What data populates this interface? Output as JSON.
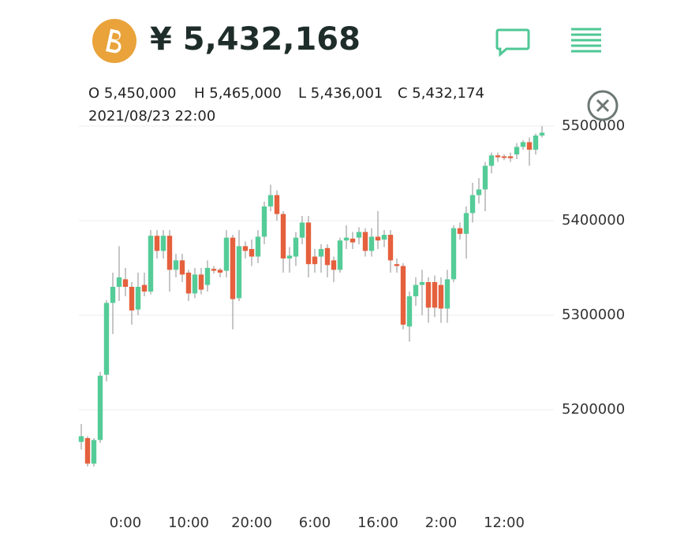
{
  "header": {
    "price": "¥ 5,432,168"
  },
  "ohlc": {
    "open": "O 5,450,000",
    "high": "H 5,465,000",
    "low": "L 5,436,001",
    "close": "C 5,432,174",
    "time": "2021/08/23 22:00"
  },
  "chart_data": {
    "type": "candlestick",
    "categories": [
      null,
      null,
      null,
      null,
      null,
      null,
      null,
      "0:00",
      null,
      null,
      null,
      null,
      null,
      null,
      null,
      null,
      null,
      "10:00",
      null,
      null,
      null,
      null,
      null,
      null,
      null,
      null,
      null,
      "20:00",
      null,
      null,
      null,
      null,
      null,
      null,
      null,
      null,
      null,
      "6:00",
      null,
      null,
      null,
      null,
      null,
      null,
      null,
      null,
      null,
      "16:00",
      null,
      null,
      null,
      null,
      null,
      null,
      null,
      null,
      null,
      "2:00",
      null,
      null,
      null,
      null,
      null,
      null,
      null,
      null,
      null,
      "12:00",
      null,
      null,
      null,
      null,
      null,
      null
    ],
    "open": [
      5166000,
      5170000,
      5143000,
      5168000,
      5237000,
      5313000,
      5330000,
      5338000,
      5330000,
      5306000,
      5332000,
      5325000,
      5384000,
      5368000,
      5384000,
      5348000,
      5358000,
      5345000,
      5323000,
      5343000,
      5332000,
      5349000,
      5348000,
      5347000,
      5382000,
      5318000,
      5373000,
      5370000,
      5362000,
      5383000,
      5415000,
      5427000,
      5407000,
      5360000,
      5362000,
      5382000,
      5398000,
      5362000,
      5362000,
      5371000,
      5358000,
      5348000,
      5379000,
      5381000,
      5382000,
      5388000,
      5368000,
      5383000,
      5380000,
      5385000,
      5354000,
      5352000,
      5288000,
      5320000,
      5332000,
      5335000,
      5335000,
      5332000,
      5307000,
      5338000,
      5392000,
      5386000,
      5408000,
      5427000,
      5433000,
      5458000,
      5469000,
      5468000,
      5468000,
      5470000,
      5478000,
      5483000,
      5475000,
      5490000
    ],
    "high": [
      5185000,
      5172000,
      5170000,
      5240000,
      5316000,
      5345000,
      5373000,
      5350000,
      5335000,
      5345000,
      5345000,
      5390000,
      5390000,
      5390000,
      5390000,
      5365000,
      5365000,
      5348000,
      5350000,
      5350000,
      5358000,
      5352000,
      5350000,
      5390000,
      5385000,
      5390000,
      5378000,
      5380000,
      5390000,
      5420000,
      5438000,
      5432000,
      5410000,
      5372000,
      5388000,
      5405000,
      5405000,
      5370000,
      5375000,
      5375000,
      5362000,
      5382000,
      5395000,
      5388000,
      5393000,
      5392000,
      5392000,
      5410000,
      5390000,
      5390000,
      5360000,
      5355000,
      5325000,
      5340000,
      5348000,
      5340000,
      5342000,
      5340000,
      5348000,
      5395000,
      5398000,
      5415000,
      5440000,
      5445000,
      5462000,
      5472000,
      5472000,
      5470000,
      5472000,
      5482000,
      5485000,
      5488000,
      5492000,
      5500000
    ],
    "low": [
      5158000,
      5140000,
      5140000,
      5165000,
      5230000,
      5280000,
      5315000,
      5320000,
      5290000,
      5300000,
      5320000,
      5322000,
      5360000,
      5360000,
      5325000,
      5340000,
      5335000,
      5315000,
      5318000,
      5322000,
      5325000,
      5344000,
      5340000,
      5340000,
      5285000,
      5315000,
      5360000,
      5352000,
      5355000,
      5375000,
      5410000,
      5400000,
      5345000,
      5345000,
      5352000,
      5375000,
      5340000,
      5345000,
      5345000,
      5340000,
      5335000,
      5345000,
      5370000,
      5370000,
      5375000,
      5362000,
      5362000,
      5370000,
      5372000,
      5345000,
      5345000,
      5285000,
      5272000,
      5310000,
      5300000,
      5292000,
      5298000,
      5292000,
      5292000,
      5335000,
      5380000,
      5360000,
      5398000,
      5418000,
      5410000,
      5450000,
      5462000,
      5464000,
      5462000,
      5465000,
      5475000,
      5458000,
      5470000,
      5488000
    ],
    "close": [
      5172000,
      5143000,
      5168000,
      5236000,
      5313000,
      5330000,
      5340000,
      5330000,
      5305000,
      5330000,
      5325000,
      5384000,
      5368000,
      5384000,
      5348000,
      5358000,
      5343000,
      5323000,
      5343000,
      5327000,
      5350000,
      5347000,
      5345000,
      5382000,
      5317000,
      5373000,
      5368000,
      5362000,
      5383000,
      5415000,
      5427000,
      5407000,
      5360000,
      5363000,
      5382000,
      5398000,
      5354000,
      5354000,
      5370000,
      5353000,
      5348000,
      5379000,
      5382000,
      5377000,
      5388000,
      5368000,
      5383000,
      5379000,
      5385000,
      5358000,
      5352000,
      5290000,
      5320000,
      5332000,
      5335000,
      5308000,
      5308000,
      5307000,
      5338000,
      5392000,
      5386000,
      5408000,
      5427000,
      5433000,
      5458000,
      5469000,
      5467000,
      5467000,
      5466000,
      5478000,
      5483000,
      5475000,
      5490000,
      5493000
    ],
    "up_color": "#55cc98",
    "down_color": "#e5603d",
    "ylim": [
      5100000,
      5510000
    ],
    "yticks": [
      5200000,
      5300000,
      5400000,
      5500000
    ],
    "grid": true
  }
}
